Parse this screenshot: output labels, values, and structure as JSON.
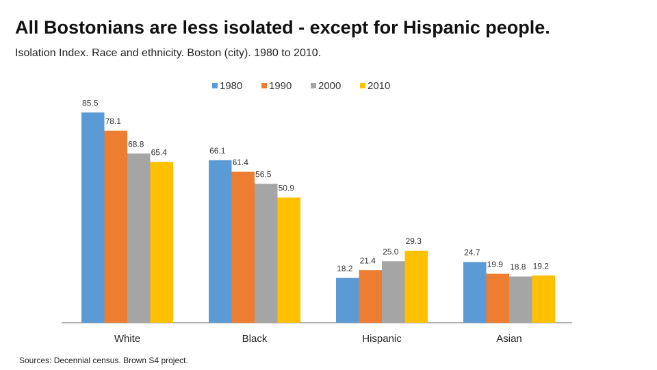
{
  "chart_data": {
    "type": "bar",
    "title": "All Bostonians are less isolated - except for Hispanic people.",
    "subtitle": "Isolation Index. Race and ethnicity. Boston (city). 1980 to 2010.",
    "source": "Sources: Decennial census. Brown S4 project.",
    "categories": [
      "White",
      "Black",
      "Hispanic",
      "Asian"
    ],
    "series": [
      {
        "name": "1980",
        "color": "#5b9bd5",
        "values": [
          85.5,
          66.1,
          18.2,
          24.7
        ]
      },
      {
        "name": "1990",
        "color": "#ed7d31",
        "values": [
          78.1,
          61.4,
          21.4,
          19.9
        ]
      },
      {
        "name": "2000",
        "color": "#a5a5a5",
        "values": [
          68.8,
          56.5,
          25,
          18.8
        ],
        "value_labels": [
          "68.8",
          "56.5",
          "25.0",
          "18.8"
        ]
      },
      {
        "name": "2010",
        "color": "#ffc000",
        "values": [
          65.4,
          50.9,
          29.3,
          19.2
        ]
      }
    ],
    "ylim": [
      0,
      90
    ],
    "legend": "top"
  }
}
